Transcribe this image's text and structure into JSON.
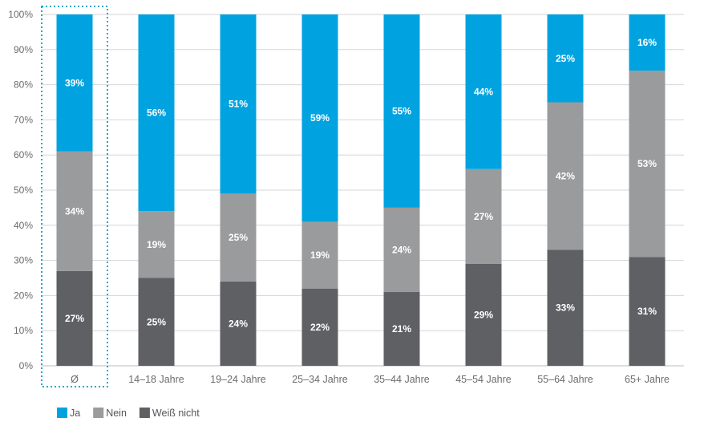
{
  "chart_data": {
    "type": "bar",
    "stacked": true,
    "categories": [
      "Ø",
      "14–18 Jahre",
      "19–24 Jahre",
      "25–34 Jahre",
      "35–44 Jahre",
      "45–54 Jahre",
      "55–64 Jahre",
      "65+ Jahre"
    ],
    "series": [
      {
        "name": "Weiß nicht",
        "color": "#5f6064",
        "values": [
          27,
          25,
          24,
          22,
          21,
          29,
          33,
          31
        ]
      },
      {
        "name": "Nein",
        "color": "#9a9b9d",
        "values": [
          34,
          19,
          25,
          19,
          24,
          27,
          42,
          53
        ]
      },
      {
        "name": "Ja",
        "color": "#00a3e0",
        "values": [
          39,
          56,
          51,
          59,
          55,
          44,
          25,
          16
        ]
      }
    ],
    "yticks": [
      "0%",
      "10%",
      "20%",
      "30%",
      "40%",
      "50%",
      "60%",
      "70%",
      "80%",
      "90%",
      "100%"
    ],
    "ylim": [
      0,
      100
    ],
    "grid": true,
    "legend_position": "bottom-left",
    "highlighted_category": "Ø",
    "highlight_color": "#19a7c9"
  }
}
